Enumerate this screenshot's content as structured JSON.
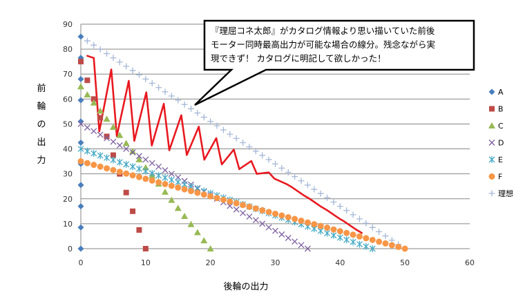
{
  "chart_data": {
    "type": "scatter",
    "title": "",
    "xlabel": "後輪の出力",
    "ylabel": "前輪の出力",
    "xlim": [
      0,
      60
    ],
    "ylim": [
      0,
      90
    ],
    "xticks": [
      0,
      10,
      20,
      30,
      40,
      50,
      60
    ],
    "yticks": [
      0,
      10,
      20,
      30,
      40,
      50,
      60,
      70,
      80,
      90
    ],
    "grid": "horizontal",
    "legend_position": "right",
    "series": [
      {
        "name": "A",
        "marker": "diamond",
        "color": "#4a7ebb",
        "points": [
          [
            0,
            0
          ],
          [
            0,
            8.5
          ],
          [
            0,
            17
          ],
          [
            0,
            25.5
          ],
          [
            0,
            34
          ],
          [
            0,
            42.5
          ],
          [
            0,
            51
          ],
          [
            0,
            59.5
          ],
          [
            0,
            68
          ],
          [
            0,
            76.5
          ],
          [
            0,
            85
          ]
        ]
      },
      {
        "name": "B",
        "marker": "square",
        "color": "#be4b48",
        "points": [
          [
            0,
            75
          ],
          [
            1,
            67.5
          ],
          [
            2,
            60
          ],
          [
            3,
            52.5
          ],
          [
            4,
            45
          ],
          [
            5,
            37.5
          ],
          [
            6,
            30
          ],
          [
            7,
            22.5
          ],
          [
            8,
            15
          ],
          [
            9,
            7.5
          ],
          [
            10,
            0
          ]
        ]
      },
      {
        "name": "C",
        "marker": "triangle",
        "color": "#98b954",
        "points": [
          [
            0,
            65
          ],
          [
            1,
            61.75
          ],
          [
            2,
            58.5
          ],
          [
            3,
            55.25
          ],
          [
            4,
            52
          ],
          [
            5,
            48.75
          ],
          [
            6,
            45.5
          ],
          [
            7,
            42.25
          ],
          [
            8,
            39
          ],
          [
            9,
            35.75
          ],
          [
            10,
            32.5
          ],
          [
            11,
            29.25
          ],
          [
            12,
            26
          ],
          [
            13,
            22.75
          ],
          [
            14,
            19.5
          ],
          [
            15,
            16.25
          ],
          [
            16,
            13
          ],
          [
            17,
            9.75
          ],
          [
            18,
            6.5
          ],
          [
            19,
            3.25
          ],
          [
            20,
            0
          ]
        ]
      },
      {
        "name": "D",
        "marker": "x",
        "color": "#7d60a0",
        "points": [
          [
            0,
            50
          ],
          [
            1,
            48.57
          ],
          [
            2,
            47.14
          ],
          [
            3,
            45.71
          ],
          [
            4,
            44.29
          ],
          [
            5,
            42.86
          ],
          [
            6,
            41.43
          ],
          [
            7,
            40
          ],
          [
            8,
            38.57
          ],
          [
            9,
            37.14
          ],
          [
            10,
            35.71
          ],
          [
            11,
            34.29
          ],
          [
            12,
            32.86
          ],
          [
            13,
            31.43
          ],
          [
            14,
            30
          ],
          [
            15,
            28.57
          ],
          [
            16,
            27.14
          ],
          [
            17,
            25.71
          ],
          [
            18,
            24.29
          ],
          [
            19,
            22.86
          ],
          [
            20,
            21.43
          ],
          [
            21,
            20
          ],
          [
            22,
            18.57
          ],
          [
            23,
            17.14
          ],
          [
            24,
            15.71
          ],
          [
            25,
            14.29
          ],
          [
            26,
            12.86
          ],
          [
            27,
            11.43
          ],
          [
            28,
            10
          ],
          [
            29,
            8.57
          ],
          [
            30,
            7.14
          ],
          [
            31,
            5.71
          ],
          [
            32,
            4.29
          ],
          [
            33,
            2.86
          ],
          [
            34,
            1.43
          ],
          [
            35,
            0
          ]
        ]
      },
      {
        "name": "E",
        "marker": "asterisk",
        "color": "#46aac5",
        "points": [
          [
            0,
            40
          ],
          [
            1,
            39.11
          ],
          [
            2,
            38.22
          ],
          [
            3,
            37.33
          ],
          [
            4,
            36.44
          ],
          [
            5,
            35.56
          ],
          [
            6,
            34.67
          ],
          [
            7,
            33.78
          ],
          [
            8,
            32.89
          ],
          [
            9,
            32
          ],
          [
            10,
            31.11
          ],
          [
            11,
            30.22
          ],
          [
            12,
            29.33
          ],
          [
            13,
            28.44
          ],
          [
            14,
            27.56
          ],
          [
            15,
            26.67
          ],
          [
            16,
            25.78
          ],
          [
            17,
            24.89
          ],
          [
            18,
            24
          ],
          [
            19,
            23.11
          ],
          [
            20,
            22.22
          ],
          [
            21,
            21.33
          ],
          [
            22,
            20.44
          ],
          [
            23,
            19.56
          ],
          [
            24,
            18.67
          ],
          [
            25,
            17.78
          ],
          [
            26,
            16.89
          ],
          [
            27,
            16
          ],
          [
            28,
            15.11
          ],
          [
            29,
            14.22
          ],
          [
            30,
            13.33
          ],
          [
            31,
            12.44
          ],
          [
            32,
            11.56
          ],
          [
            33,
            10.67
          ],
          [
            34,
            9.78
          ],
          [
            35,
            8.89
          ],
          [
            36,
            8
          ],
          [
            37,
            7.11
          ],
          [
            38,
            6.22
          ],
          [
            39,
            5.33
          ],
          [
            40,
            4.44
          ],
          [
            41,
            3.56
          ],
          [
            42,
            2.67
          ],
          [
            43,
            1.78
          ],
          [
            44,
            0.89
          ],
          [
            45,
            0
          ]
        ]
      },
      {
        "name": "F",
        "marker": "circle",
        "color": "#f79646",
        "points": [
          [
            0,
            35
          ],
          [
            1,
            34.3
          ],
          [
            2,
            33.6
          ],
          [
            3,
            32.9
          ],
          [
            4,
            32.2
          ],
          [
            5,
            31.5
          ],
          [
            6,
            30.8
          ],
          [
            7,
            30.1
          ],
          [
            8,
            29.4
          ],
          [
            9,
            28.7
          ],
          [
            10,
            28
          ],
          [
            11,
            27.3
          ],
          [
            12,
            26.6
          ],
          [
            13,
            25.9
          ],
          [
            14,
            25.2
          ],
          [
            15,
            24.5
          ],
          [
            16,
            23.8
          ],
          [
            17,
            23.1
          ],
          [
            18,
            22.4
          ],
          [
            19,
            21.7
          ],
          [
            20,
            21
          ],
          [
            21,
            20.3
          ],
          [
            22,
            19.6
          ],
          [
            23,
            18.9
          ],
          [
            24,
            18.2
          ],
          [
            25,
            17.5
          ],
          [
            26,
            16.8
          ],
          [
            27,
            16.1
          ],
          [
            28,
            15.4
          ],
          [
            29,
            14.7
          ],
          [
            30,
            14
          ],
          [
            31,
            13.3
          ],
          [
            32,
            12.6
          ],
          [
            33,
            11.9
          ],
          [
            34,
            11.2
          ],
          [
            35,
            10.5
          ],
          [
            36,
            9.8
          ],
          [
            37,
            9.1
          ],
          [
            38,
            8.4
          ],
          [
            39,
            7.7
          ],
          [
            40,
            7
          ],
          [
            41,
            6.3
          ],
          [
            42,
            5.6
          ],
          [
            43,
            4.9
          ],
          [
            44,
            4.2
          ],
          [
            45,
            3.5
          ],
          [
            46,
            2.8
          ],
          [
            47,
            2.1
          ],
          [
            48,
            1.4
          ],
          [
            49,
            0.7
          ],
          [
            50,
            0
          ]
        ]
      },
      {
        "name": "理想",
        "marker": "plus",
        "color": "#a5b7d6",
        "points": [
          [
            1,
            83.3
          ],
          [
            2,
            81.6
          ],
          [
            3,
            79.9
          ],
          [
            4,
            78.2
          ],
          [
            5,
            76.5
          ],
          [
            6,
            74.8
          ],
          [
            7,
            73.1
          ],
          [
            8,
            71.4
          ],
          [
            9,
            69.7
          ],
          [
            10,
            68
          ],
          [
            11,
            66.3
          ],
          [
            12,
            64.6
          ],
          [
            13,
            62.9
          ],
          [
            14,
            61.2
          ],
          [
            15,
            59.5
          ],
          [
            16,
            57.8
          ],
          [
            17,
            56.1
          ],
          [
            18,
            54.4
          ],
          [
            19,
            52.7
          ],
          [
            20,
            51
          ],
          [
            21,
            49.3
          ],
          [
            22,
            47.6
          ],
          [
            23,
            45.9
          ],
          [
            24,
            44.2
          ],
          [
            25,
            42.5
          ],
          [
            26,
            40.8
          ],
          [
            27,
            39.1
          ],
          [
            28,
            37.4
          ],
          [
            29,
            35.7
          ],
          [
            30,
            34
          ],
          [
            31,
            32.3
          ],
          [
            32,
            30.6
          ],
          [
            33,
            28.9
          ],
          [
            34,
            27.2
          ],
          [
            35,
            25.5
          ],
          [
            36,
            23.8
          ],
          [
            37,
            22.1
          ],
          [
            38,
            20.4
          ],
          [
            39,
            18.7
          ],
          [
            40,
            17
          ],
          [
            41,
            15.3
          ],
          [
            42,
            13.6
          ],
          [
            43,
            11.9
          ],
          [
            44,
            10.2
          ],
          [
            45,
            8.5
          ],
          [
            46,
            6.8
          ],
          [
            47,
            5.1
          ],
          [
            48,
            3.4
          ],
          [
            49,
            1.7
          ],
          [
            50,
            0
          ]
        ]
      }
    ],
    "annotation": {
      "lines": [
        "『理屈コネ太郎』がカタログ情報より思い描いていた前後",
        "モーター同時最高出力が可能な場合の線分。残念ながら実",
        "現できず！ カタログに明記して欲しかった！"
      ]
    },
    "scribble_color": "#e8191f"
  }
}
